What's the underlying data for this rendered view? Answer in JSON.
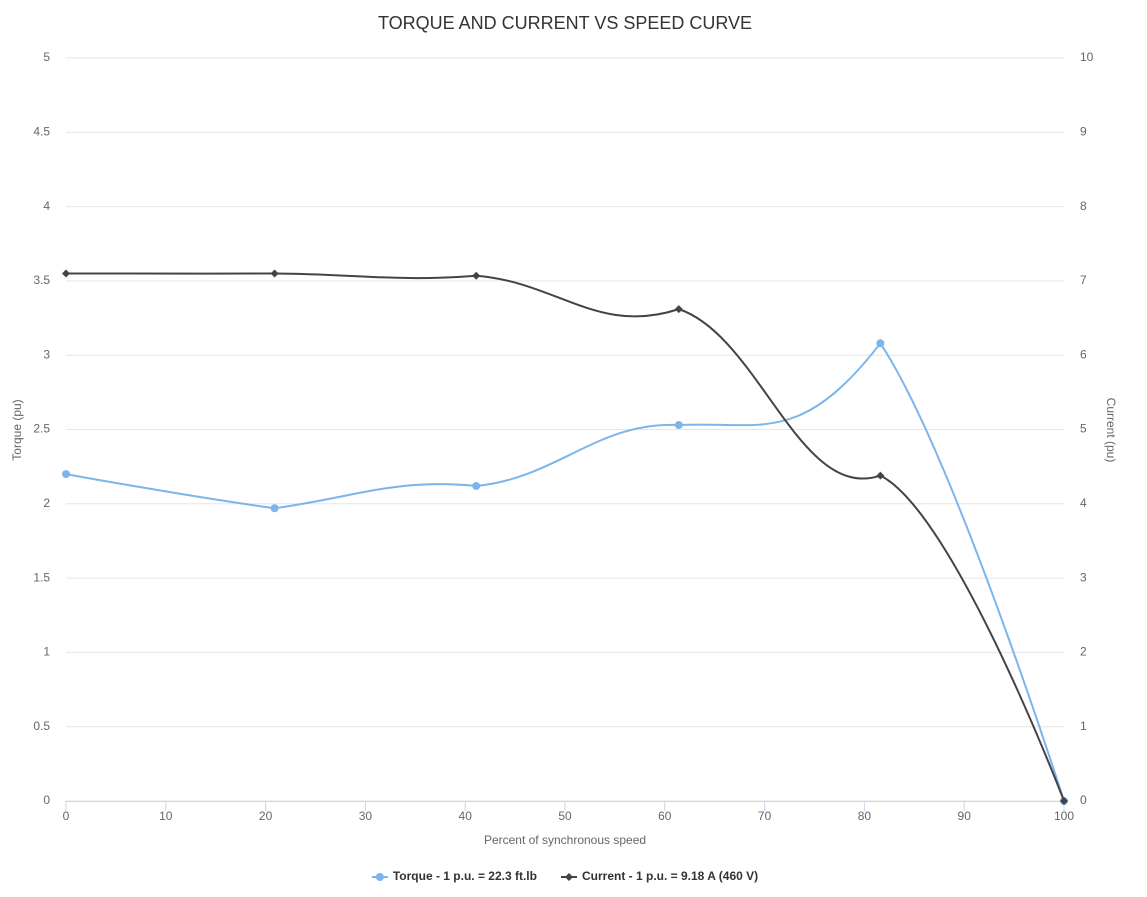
{
  "chart_data": {
    "type": "spline",
    "title": "TORQUE AND CURRENT VS SPEED CURVE",
    "x_label": "Percent of synchronous speed",
    "y_label": "Torque (pu)",
    "y2_label": "Current (pu)",
    "x": [
      0,
      20.9,
      41.1,
      61.4,
      81.6,
      100
    ],
    "xlim": [
      0,
      100
    ],
    "xticks": [
      0,
      10,
      20,
      30,
      40,
      50,
      60,
      70,
      80,
      90,
      100
    ],
    "ylim": [
      0,
      5
    ],
    "yticks": [
      0,
      0.5,
      1,
      1.5,
      2,
      2.5,
      3,
      3.5,
      4,
      4.5,
      5
    ],
    "y2lim": [
      0,
      10
    ],
    "y2ticks": [
      0,
      1,
      2,
      3,
      4,
      5,
      6,
      7,
      8,
      9,
      10
    ],
    "grid": true,
    "legend": "bottom",
    "series": [
      {
        "name": "Torque - 1 p.u. = 22.3 ft.lb",
        "color": "#7cb5ec",
        "marker": "circle",
        "values": [
          2.2,
          1.97,
          2.12,
          2.53,
          3.08,
          0
        ]
      },
      {
        "name": "Current - 1 p.u. = 9.18 A (460 V)",
        "color": "#434348",
        "marker": "diamond",
        "axis": "y2",
        "values": [
          7.1,
          7.1,
          7.07,
          6.62,
          4.38,
          0
        ]
      }
    ]
  }
}
